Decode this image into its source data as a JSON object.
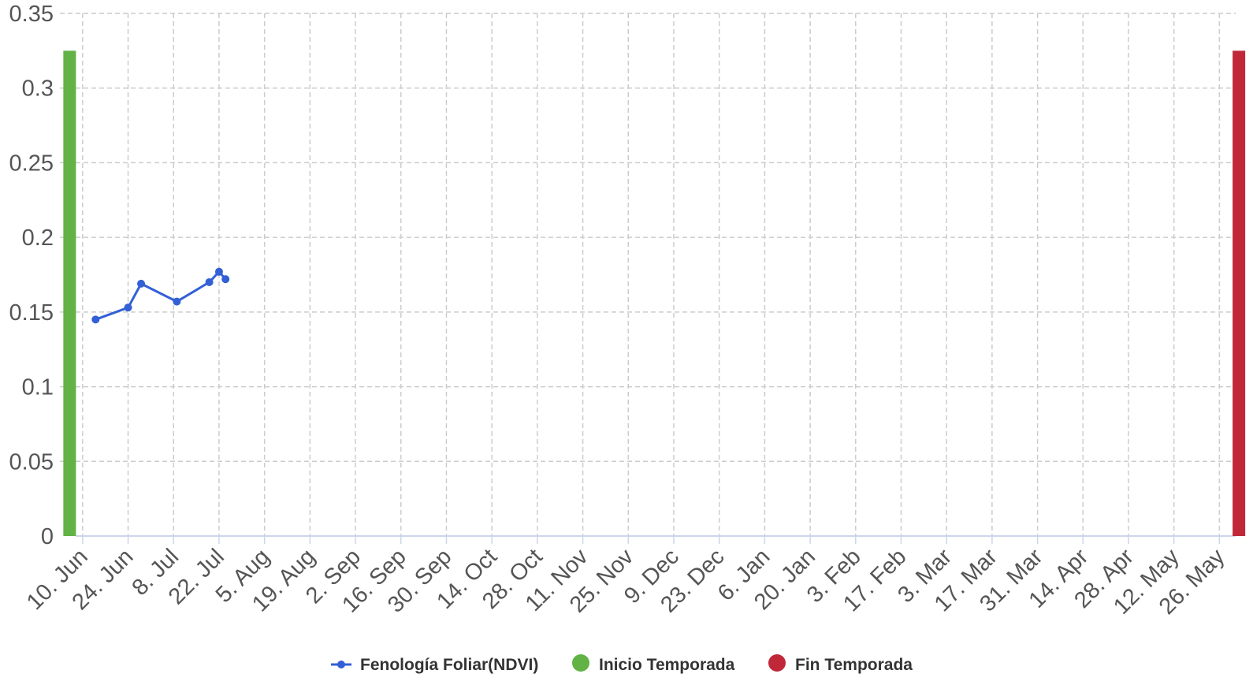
{
  "chart_data": {
    "type": "line",
    "title": "",
    "xlabel": "",
    "ylabel": "",
    "ylim": [
      0,
      0.35
    ],
    "yticks": [
      "0",
      "0.05",
      "0.1",
      "0.15",
      "0.2",
      "0.25",
      "0.3",
      "0.35"
    ],
    "xlim": [
      "2024-06-03",
      "2025-05-31"
    ],
    "xticks": [
      {
        "date": "2024-06-10",
        "label": "10. Jun"
      },
      {
        "date": "2024-06-24",
        "label": "24. Jun"
      },
      {
        "date": "2024-07-08",
        "label": "8. Jul"
      },
      {
        "date": "2024-07-22",
        "label": "22. Jul"
      },
      {
        "date": "2024-08-05",
        "label": "5. Aug"
      },
      {
        "date": "2024-08-19",
        "label": "19. Aug"
      },
      {
        "date": "2024-09-02",
        "label": "2. Sep"
      },
      {
        "date": "2024-09-16",
        "label": "16. Sep"
      },
      {
        "date": "2024-09-30",
        "label": "30. Sep"
      },
      {
        "date": "2024-10-14",
        "label": "14. Oct"
      },
      {
        "date": "2024-10-28",
        "label": "28. Oct"
      },
      {
        "date": "2024-11-11",
        "label": "11. Nov"
      },
      {
        "date": "2024-11-25",
        "label": "25. Nov"
      },
      {
        "date": "2024-12-09",
        "label": "9. Dec"
      },
      {
        "date": "2024-12-23",
        "label": "23. Dec"
      },
      {
        "date": "2025-01-06",
        "label": "6. Jan"
      },
      {
        "date": "2025-01-20",
        "label": "20. Jan"
      },
      {
        "date": "2025-02-03",
        "label": "3. Feb"
      },
      {
        "date": "2025-02-17",
        "label": "17. Feb"
      },
      {
        "date": "2025-03-03",
        "label": "3. Mar"
      },
      {
        "date": "2025-03-17",
        "label": "17. Mar"
      },
      {
        "date": "2025-03-31",
        "label": "31. Mar"
      },
      {
        "date": "2025-04-14",
        "label": "14. Apr"
      },
      {
        "date": "2025-04-28",
        "label": "28. Apr"
      },
      {
        "date": "2025-05-12",
        "label": "12. May"
      },
      {
        "date": "2025-05-26",
        "label": "26. May"
      }
    ],
    "grid": true,
    "legend_position": "bottom-center",
    "series": [
      {
        "name": "Fenología Foliar(NDVI)",
        "type": "line",
        "color": "#3360d6",
        "points": [
          {
            "x": "2024-06-14",
            "y": 0.145
          },
          {
            "x": "2024-06-24",
            "y": 0.153
          },
          {
            "x": "2024-06-28",
            "y": 0.169
          },
          {
            "x": "2024-07-09",
            "y": 0.157
          },
          {
            "x": "2024-07-19",
            "y": 0.17
          },
          {
            "x": "2024-07-22",
            "y": 0.177
          },
          {
            "x": "2024-07-24",
            "y": 0.172
          }
        ]
      },
      {
        "name": "Inicio Temporada",
        "type": "bar",
        "color": "#62b245",
        "points": [
          {
            "x": "2024-06-06",
            "y": 0.325
          }
        ]
      },
      {
        "name": "Fin Temporada",
        "type": "bar",
        "color": "#c0283a",
        "points": [
          {
            "x": "2025-06-01",
            "y": 0.325
          }
        ]
      }
    ]
  },
  "colors": {
    "grid": "#cccccc",
    "axis_line": "#ccd6eb",
    "tick_text": "#555555",
    "legend_text": "#333333"
  }
}
